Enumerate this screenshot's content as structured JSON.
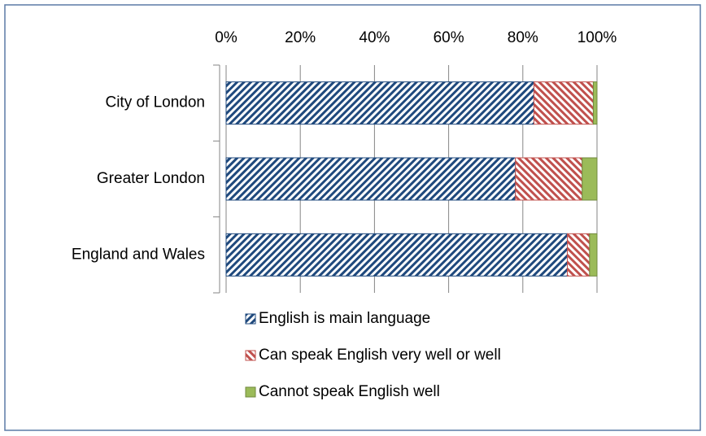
{
  "chart_data": {
    "type": "stacked-barh",
    "categories": [
      "City of London",
      "Greater London",
      "England and Wales"
    ],
    "series": [
      {
        "name": "English is main language",
        "color": "#1f497d",
        "hatch": "forward",
        "values": [
          83,
          78,
          92
        ]
      },
      {
        "name": "Can speak English very well or well",
        "color": "#c0504d",
        "hatch": "backward",
        "values": [
          16,
          18,
          6
        ]
      },
      {
        "name": "Cannot speak English well",
        "color": "#9bbb59",
        "hatch": "none",
        "values": [
          1,
          4,
          2
        ]
      }
    ],
    "xlim": [
      0,
      100
    ],
    "xticks": [
      {
        "value": 0,
        "label": "0%"
      },
      {
        "value": 20,
        "label": "20%"
      },
      {
        "value": 40,
        "label": "40%"
      },
      {
        "value": 60,
        "label": "60%"
      },
      {
        "value": 80,
        "label": "80%"
      },
      {
        "value": 100,
        "label": "100%"
      }
    ],
    "grid": true,
    "legend": "bottom"
  }
}
